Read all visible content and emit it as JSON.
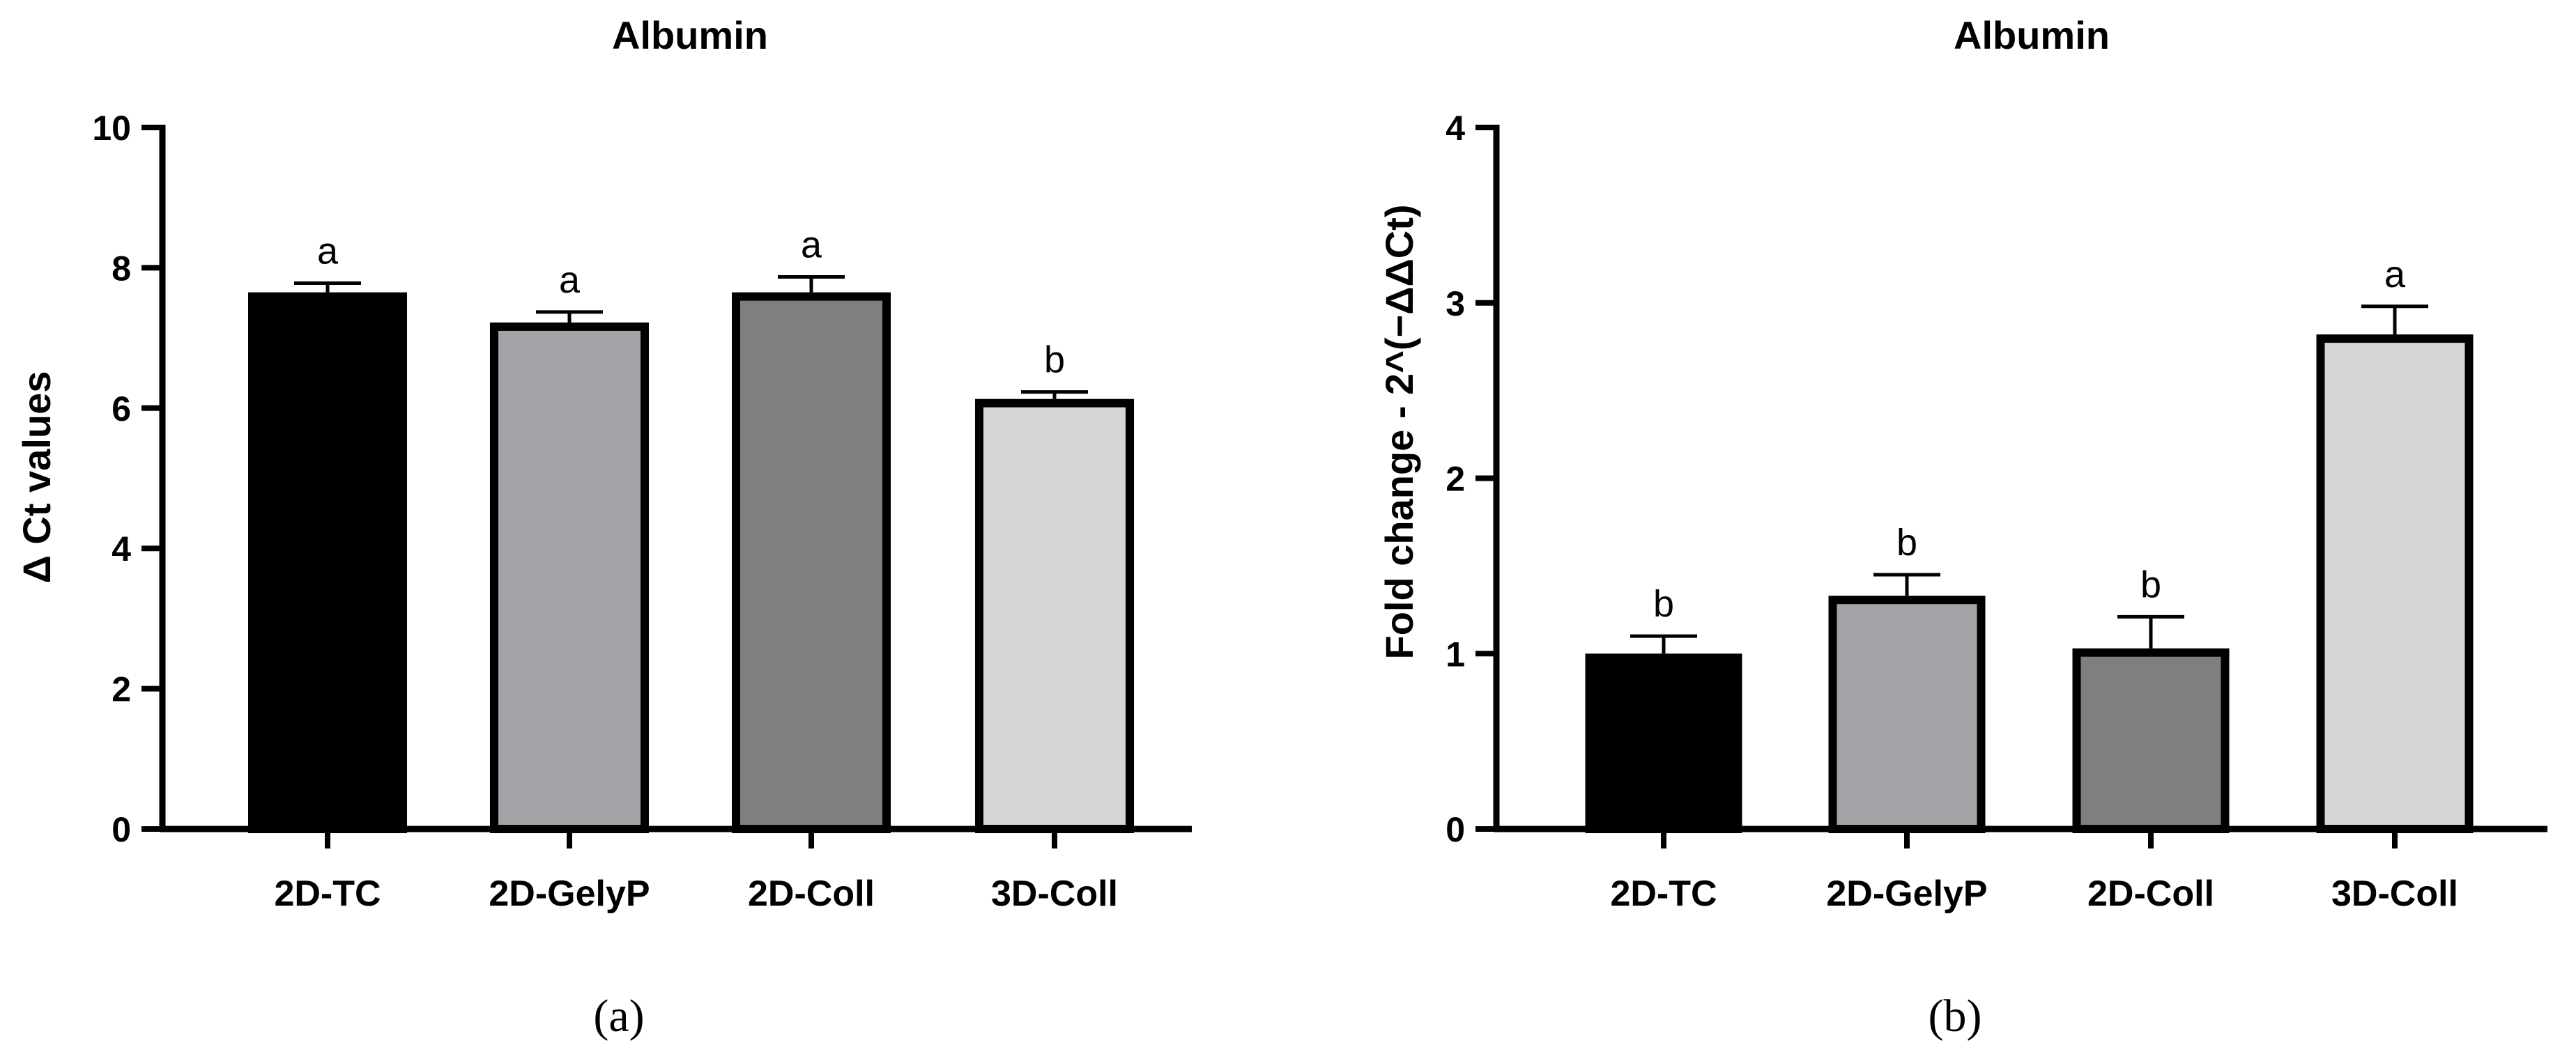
{
  "figure": {
    "panel_labels": [
      "(a)",
      "(b)"
    ]
  },
  "chart_data": [
    {
      "type": "bar",
      "title": "Albumin",
      "xlabel": "",
      "ylabel": "Δ Ct values",
      "ylim": [
        0,
        10
      ],
      "yticks": [
        0,
        2,
        4,
        6,
        8,
        10
      ],
      "categories": [
        "2D-TC",
        "2D-GelyP",
        "2D-Coll",
        "3D-Coll"
      ],
      "values": [
        7.65,
        7.22,
        7.65,
        6.13
      ],
      "errors": [
        0.13,
        0.15,
        0.22,
        0.1
      ],
      "significance": [
        "a",
        "a",
        "a",
        "b"
      ],
      "bar_colors": [
        "#000000",
        "#a4a4a8",
        "#7f7f7f",
        "#d6d6d6"
      ],
      "grid": false,
      "legend": "none"
    },
    {
      "type": "bar",
      "title": "Albumin",
      "xlabel": "",
      "ylabel": "Fold change - 2^(−ΔΔCt)",
      "ylim": [
        0,
        4
      ],
      "yticks": [
        0,
        1,
        2,
        3,
        4
      ],
      "categories": [
        "2D-TC",
        "2D-GelyP",
        "2D-Coll",
        "3D-Coll"
      ],
      "values": [
        1.0,
        1.33,
        1.03,
        2.82
      ],
      "errors": [
        0.1,
        0.12,
        0.18,
        0.16
      ],
      "significance": [
        "b",
        "b",
        "b",
        "a"
      ],
      "bar_colors": [
        "#000000",
        "#a4a4a8",
        "#7f7f7f",
        "#d6d6d6"
      ],
      "grid": false,
      "legend": "none"
    }
  ]
}
